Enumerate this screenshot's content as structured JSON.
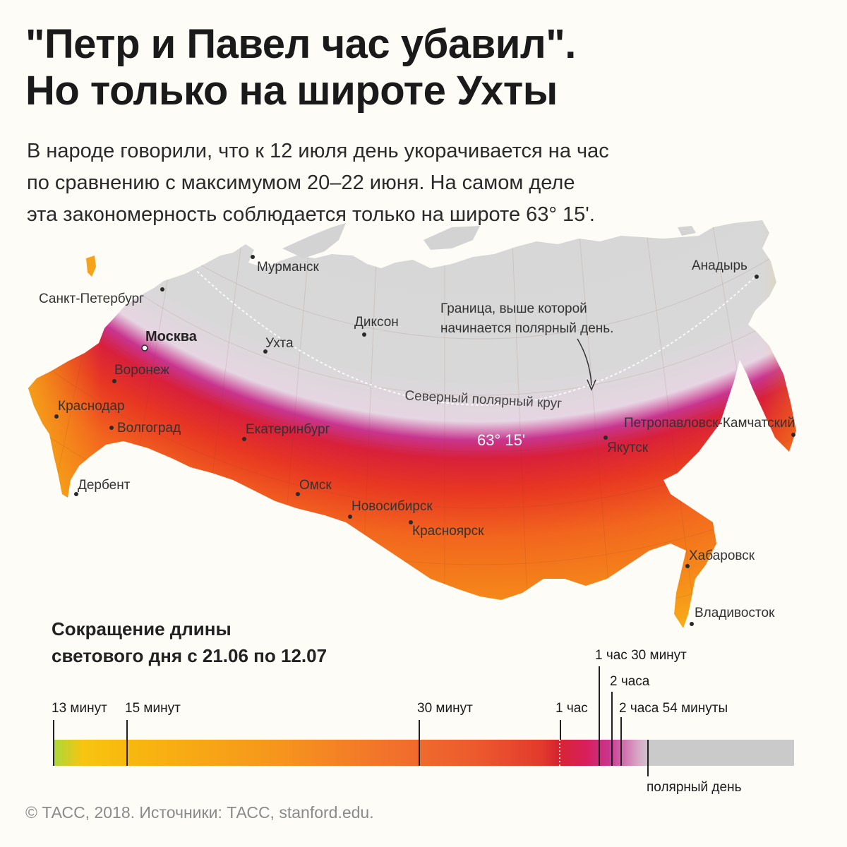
{
  "title": {
    "line1": "\"Петр и Павел час убавил\".",
    "line2": "Но только на широте Ухты"
  },
  "subtitle": {
    "line1": "В народе говорили, что к 12 июля день укорачивается на час",
    "line2": "по сравнению с максимумом 20–22 июня. На самом деле",
    "line3": "эта закономерность соблюдается только на широте 63° 15'."
  },
  "map": {
    "cities": {
      "murmansk": "Мурманск",
      "anadyr": "Анадырь",
      "spb": "Санкт-Петербург",
      "dikson": "Диксон",
      "moscow": "Москва",
      "ukhta": "Ухта",
      "voronezh": "Воронеж",
      "krasnodar": "Краснодар",
      "volgograd": "Волгоград",
      "ekaterinburg": "Екатеринбург",
      "petropavlovsk": "Петропавловск-Камчатский",
      "yakutsk": "Якутск",
      "derbent": "Дербент",
      "omsk": "Омск",
      "novosibirsk": "Новосибирск",
      "krasnoyarsk": "Красноярск",
      "khabarovsk": "Хабаровск",
      "vladivostok": "Владивосток"
    },
    "annotation": {
      "line1": "Граница, выше которой",
      "line2": "начинается полярный день."
    },
    "arctic_circle_label": "Северный полярный круг",
    "latitude_label": "63° 15'",
    "colors": {
      "polar_day": "#d3d3d3",
      "max_red": "#dc1f2a",
      "magenta": "#c8358e",
      "orange": "#f47a1f",
      "yellow": "#f6c515",
      "green": "#a8d93a"
    }
  },
  "legend": {
    "title_line1": "Сокращение длины",
    "title_line2": "светового дня с 21.06 по 12.07",
    "ticks": {
      "m13": "13 минут",
      "m15": "15 минут",
      "m30": "30 минут",
      "h1": "1 час",
      "h1m30": "1 час 30 минут",
      "h2": "2 часа",
      "h2m54": "2 часа 54 минуты",
      "polar": "полярный день"
    }
  },
  "footer": "© ТАСС, 2018. Источники: ТАСС, stanford.edu."
}
